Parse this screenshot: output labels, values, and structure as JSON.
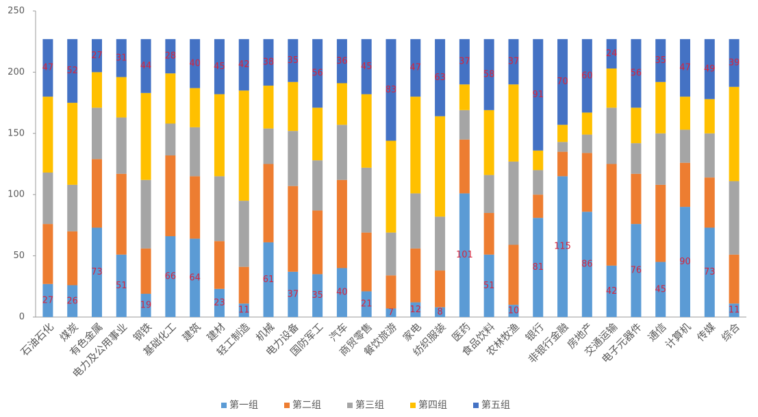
{
  "chart_data": {
    "type": "stacked_bar",
    "categories": [
      "石油石化",
      "煤炭",
      "有色金属",
      "电力及公用事业",
      "钢铁",
      "基础化工",
      "建筑",
      "建材",
      "轻工制造",
      "机械",
      "电力设备",
      "国防军工",
      "汽车",
      "商贸零售",
      "餐饮旅游",
      "家电",
      "纺织服装",
      "医药",
      "食品饮料",
      "农林牧渔",
      "银行",
      "非银行金融",
      "房地产",
      "交通运输",
      "电子元器件",
      "通信",
      "计算机",
      "传媒",
      "综合"
    ],
    "series": [
      {
        "name": "第一组",
        "color": "#5b9bd5",
        "data_labels": true,
        "values": [
          27,
          26,
          73,
          51,
          19,
          66,
          64,
          23,
          11,
          61,
          37,
          35,
          40,
          21,
          7,
          12,
          8,
          101,
          51,
          10,
          81,
          115,
          86,
          42,
          76,
          45,
          90,
          73,
          11
        ]
      },
      {
        "name": "第二组",
        "color": "#ed7d31",
        "data_labels": false,
        "values": [
          49,
          44,
          56,
          66,
          37,
          66,
          51,
          39,
          30,
          64,
          70,
          52,
          72,
          48,
          27,
          44,
          30,
          44,
          34,
          49,
          19,
          20,
          48,
          83,
          41,
          63,
          36,
          41,
          40
        ]
      },
      {
        "name": "第三组",
        "color": "#a5a5a5",
        "data_labels": false,
        "values": [
          42,
          38,
          42,
          46,
          56,
          26,
          40,
          53,
          54,
          29,
          45,
          41,
          45,
          53,
          35,
          45,
          44,
          24,
          31,
          68,
          20,
          8,
          15,
          46,
          25,
          42,
          27,
          36,
          60
        ]
      },
      {
        "name": "第四组",
        "color": "#ffc000",
        "data_labels": false,
        "values": [
          62,
          67,
          29,
          33,
          71,
          41,
          32,
          67,
          90,
          35,
          40,
          43,
          34,
          60,
          75,
          79,
          82,
          21,
          53,
          63,
          16,
          14,
          18,
          32,
          29,
          42,
          27,
          28,
          77
        ]
      },
      {
        "name": "第五组",
        "color": "#4472c4",
        "data_labels": true,
        "values": [
          47,
          52,
          27,
          31,
          44,
          28,
          40,
          45,
          42,
          38,
          35,
          56,
          36,
          45,
          83,
          47,
          63,
          37,
          58,
          37,
          91,
          70,
          60,
          24,
          56,
          35,
          47,
          49,
          39
        ]
      }
    ],
    "ylim": [
      0,
      250
    ],
    "yticks": [
      0,
      50,
      100,
      150,
      200,
      250
    ],
    "grid": false,
    "legend": "bottom"
  }
}
